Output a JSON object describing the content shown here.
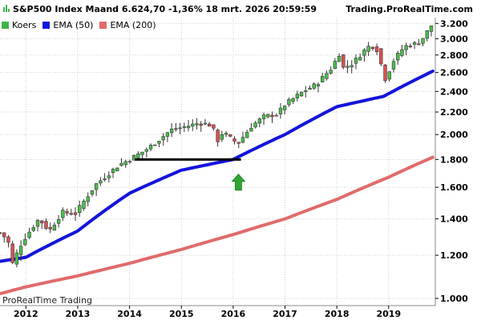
{
  "header": {
    "title": "S&P500 Index Maand 6.624,70 -1,36% 18 mrt. 2026 20:59:59",
    "site": "Trading.ProRealTime.com"
  },
  "watermark": "ProRealTime Trading",
  "legend": [
    {
      "label": "Koers",
      "color": "#3cb44b"
    },
    {
      "label": "EMA (50)",
      "color": "#1414dc"
    },
    {
      "label": "EMA (200)",
      "color": "#e06b6b"
    }
  ],
  "colors": {
    "up_candle": "#49c049",
    "down_candle": "#dc5050",
    "ema50": "#1414dc",
    "ema200": "#e06b6b",
    "support_line": "#000000",
    "arrow": "#2fa82f",
    "grid": "#cfcfcf"
  },
  "chart_data": {
    "type": "candlestick",
    "title": "S&P500 Index Maand 6.624,70 -1,36% 18 mrt. 2026 20:59:59",
    "xlabel": "",
    "ylabel": "",
    "x_ticks": [
      "2012",
      "2013",
      "2014",
      "2015",
      "2016",
      "2017",
      "2018",
      "2019"
    ],
    "x_tick_positions": [
      2012.0,
      2013.0,
      2014.0,
      2015.0,
      2016.0,
      2017.0,
      2018.0,
      2019.0
    ],
    "xlim": [
      2011.5,
      2019.9
    ],
    "y_ticks": [
      "1.000",
      "1.200",
      "1.400",
      "1.600",
      "1.800",
      "2.000",
      "2.200",
      "2.400",
      "2.600",
      "2.800",
      "3.000",
      "3.200"
    ],
    "y_tick_values": [
      1000,
      1200,
      1400,
      1600,
      1800,
      2000,
      2200,
      2400,
      2600,
      2800,
      3000,
      3200
    ],
    "ylim": [
      970,
      3280
    ],
    "ylog": true,
    "grid": true,
    "candle_anchors": [
      [
        2011.5,
        1320
      ],
      [
        2011.65,
        1280
      ],
      [
        2011.75,
        1150
      ],
      [
        2011.85,
        1230
      ],
      [
        2012.0,
        1300
      ],
      [
        2012.25,
        1400
      ],
      [
        2012.45,
        1330
      ],
      [
        2012.7,
        1440
      ],
      [
        2012.95,
        1430
      ],
      [
        2013.1,
        1500
      ],
      [
        2013.35,
        1620
      ],
      [
        2013.55,
        1680
      ],
      [
        2013.8,
        1760
      ],
      [
        2014.0,
        1800
      ],
      [
        2014.3,
        1870
      ],
      [
        2014.55,
        1950
      ],
      [
        2014.8,
        2040
      ],
      [
        2015.0,
        2060
      ],
      [
        2015.35,
        2100
      ],
      [
        2015.6,
        2080
      ],
      [
        2015.67,
        1930
      ],
      [
        2015.8,
        2020
      ],
      [
        2016.0,
        1950
      ],
      [
        2016.1,
        1930
      ],
      [
        2016.35,
        2070
      ],
      [
        2016.6,
        2160
      ],
      [
        2016.85,
        2180
      ],
      [
        2017.0,
        2270
      ],
      [
        2017.35,
        2400
      ],
      [
        2017.6,
        2470
      ],
      [
        2017.9,
        2650
      ],
      [
        2018.05,
        2820
      ],
      [
        2018.12,
        2650
      ],
      [
        2018.3,
        2700
      ],
      [
        2018.6,
        2900
      ],
      [
        2018.75,
        2910
      ],
      [
        2018.85,
        2700
      ],
      [
        2018.95,
        2500
      ],
      [
        2019.05,
        2700
      ],
      [
        2019.3,
        2900
      ],
      [
        2019.45,
        2930
      ],
      [
        2019.6,
        2950
      ],
      [
        2019.75,
        3100
      ],
      [
        2019.87,
        3220
      ]
    ],
    "ohlc_params": {
      "months": 104,
      "start": 2011.5,
      "step": 0.0808,
      "range_frac": 0.045
    },
    "series": [
      {
        "name": "EMA (50)",
        "x": [
          2011.5,
          2012.0,
          2013.0,
          2014.0,
          2015.0,
          2016.0,
          2017.0,
          2018.0,
          2018.9,
          2019.87
        ],
        "values": [
          1170,
          1190,
          1330,
          1560,
          1720,
          1800,
          2000,
          2250,
          2350,
          2620
        ]
      },
      {
        "name": "EMA (200)",
        "x": [
          2011.5,
          2012.0,
          2013.0,
          2014.0,
          2015.0,
          2016.0,
          2017.0,
          2018.0,
          2019.0,
          2019.87
        ],
        "values": [
          1020,
          1050,
          1100,
          1160,
          1230,
          1310,
          1400,
          1520,
          1670,
          1820
        ]
      }
    ],
    "annotations": [
      {
        "type": "hline",
        "label": "",
        "x0": 2014.1,
        "x1": 2016.15,
        "y": 1800
      },
      {
        "type": "up-arrow",
        "label": "",
        "x": 2016.1,
        "y": 1680
      }
    ]
  }
}
